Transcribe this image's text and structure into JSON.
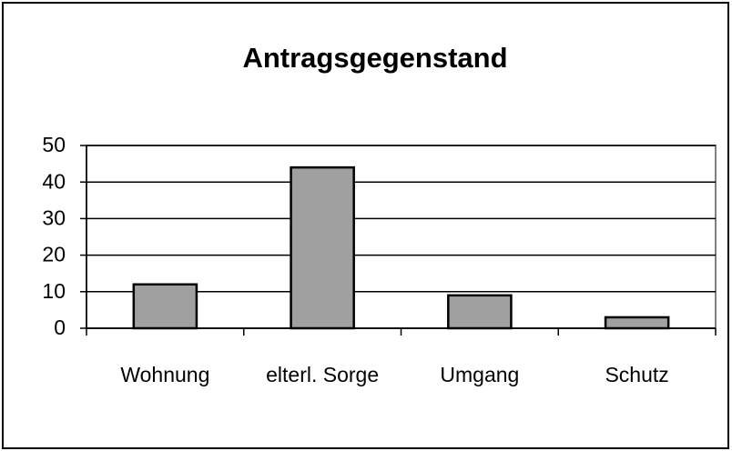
{
  "chart_data": {
    "type": "bar",
    "title": "Antragsgegenstand",
    "categories": [
      "Wohnung",
      "elterl. Sorge",
      "Umgang",
      "Schutz"
    ],
    "values": [
      12,
      44,
      9,
      3
    ],
    "color": "#a0a0a0",
    "ylim": [
      0,
      50
    ],
    "yticks": [
      0,
      10,
      20,
      30,
      40,
      50
    ],
    "grid": true
  }
}
